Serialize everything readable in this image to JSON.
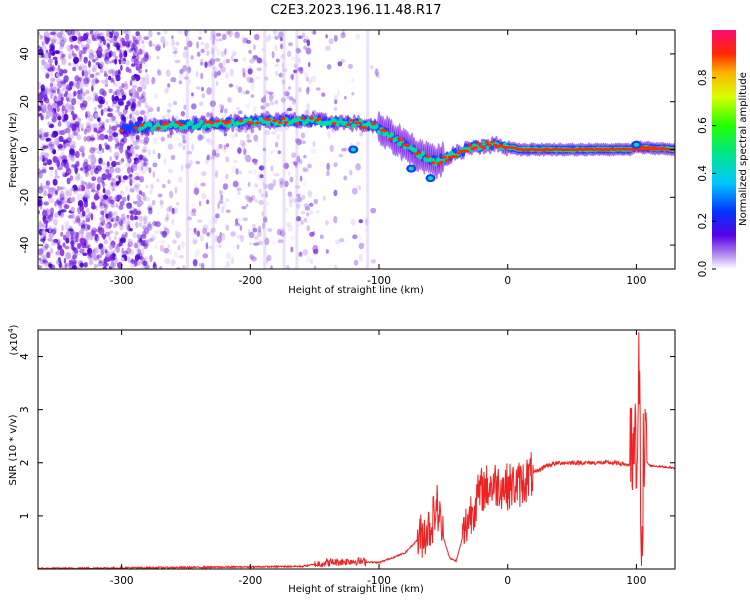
{
  "title": "C2E3.2023.196.11.48.R17",
  "colors": {
    "snr_line": "#ee2222",
    "ridge_core": "#ff2a00",
    "ridge_halo": "#00e040",
    "scatter_dots": "#8a2be2"
  },
  "colorbar": {
    "label": "Normalized spectral amplitude",
    "ticks": [
      "0.0",
      "0.2",
      "0.4",
      "0.6",
      "0.8"
    ],
    "range": [
      0,
      1
    ],
    "colormap": "rainbow"
  },
  "chart_data": [
    {
      "type": "heatmap",
      "title": "C2E3.2023.196.11.48.R17",
      "xlabel": "Height of straight line (km)",
      "ylabel": "Frequency (Hz)",
      "xlim": [
        -365,
        130
      ],
      "ylim": [
        -50,
        50
      ],
      "xticks": [
        "-300",
        "-200",
        "-100",
        "0",
        "100"
      ],
      "yticks": [
        "40",
        "20",
        "0",
        "-20",
        "-40"
      ],
      "ridge": {
        "x": [
          -300,
          -260,
          -220,
          -180,
          -150,
          -120,
          -105,
          -95,
          -80,
          -70,
          -55,
          -45,
          -30,
          -10,
          0,
          10,
          50,
          95,
          100,
          130
        ],
        "y": [
          9,
          10,
          11,
          12,
          12,
          11,
          10,
          7,
          2,
          -2,
          -5,
          -3,
          1,
          2,
          1,
          0,
          0,
          0,
          1,
          0
        ]
      },
      "noise_region_x": [
        -365,
        -150
      ]
    },
    {
      "type": "line",
      "xlabel": "Height of straight line (km)",
      "ylabel": "SNR (10 * v/v)",
      "y_multiplier": "(x10",
      "y_multiplier_exp": "4",
      "xlim": [
        -365,
        130
      ],
      "ylim": [
        0,
        4.5
      ],
      "xticks": [
        "-300",
        "-200",
        "-100",
        "0",
        "100"
      ],
      "yticks": [
        "4",
        "3",
        "2",
        "1"
      ],
      "series": [
        {
          "x": [
            -365,
            -300,
            -200,
            -160,
            -140,
            -120,
            -100,
            -80,
            -70,
            -60,
            -55,
            -50,
            -45,
            -40,
            -35,
            -30,
            -20,
            -10,
            0,
            10,
            20,
            30,
            40,
            60,
            80,
            90,
            95,
            100,
            102,
            104,
            106,
            110,
            130
          ],
          "y": [
            0.01,
            0.02,
            0.04,
            0.05,
            0.12,
            0.15,
            0.12,
            0.3,
            0.55,
            0.8,
            1.2,
            0.6,
            0.2,
            0.15,
            0.6,
            1.0,
            1.5,
            1.6,
            1.55,
            1.6,
            1.8,
            1.95,
            2.0,
            2.0,
            2.0,
            1.98,
            1.95,
            2.0,
            3.4,
            1.0,
            2.1,
            1.95,
            1.9
          ]
        }
      ]
    }
  ]
}
